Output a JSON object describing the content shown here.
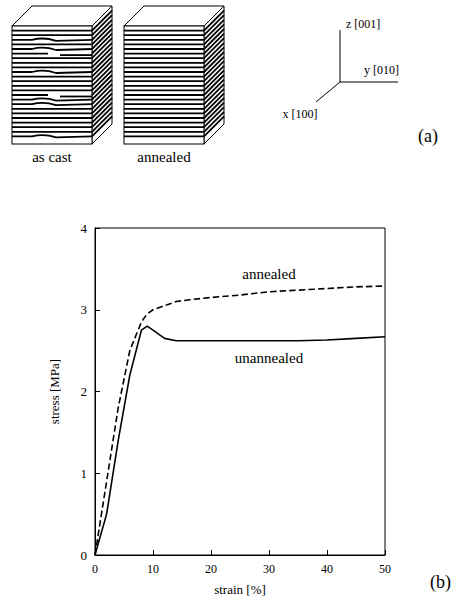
{
  "diagram": {
    "panel_label": "(a)",
    "blocks": [
      "as cast",
      "annealed"
    ],
    "axes": [
      {
        "name": "z",
        "label": "z [001]"
      },
      {
        "name": "y",
        "label": "y [010]"
      },
      {
        "name": "x",
        "label": "x [100]"
      }
    ]
  },
  "chart_data": {
    "type": "line",
    "panel_label": "(b)",
    "x_label": "strain [%]",
    "y_label": "stress [MPa]",
    "x": [
      0,
      2,
      4,
      6,
      8,
      9,
      10,
      12,
      14,
      16,
      20,
      25,
      30,
      35,
      40,
      45,
      50
    ],
    "series": [
      {
        "name": "annealed",
        "color": "#000000",
        "line_style": "dashed",
        "values": [
          0,
          0.9,
          1.8,
          2.5,
          2.85,
          2.95,
          3.0,
          3.05,
          3.1,
          3.12,
          3.15,
          3.18,
          3.22,
          3.24,
          3.26,
          3.28,
          3.29
        ]
      },
      {
        "name": "unannealed",
        "color": "#000000",
        "line_style": "solid",
        "values": [
          0,
          0.5,
          1.4,
          2.2,
          2.75,
          2.8,
          2.75,
          2.65,
          2.62,
          2.62,
          2.62,
          2.62,
          2.62,
          2.62,
          2.63,
          2.65,
          2.67
        ]
      }
    ],
    "xlim": [
      0,
      50
    ],
    "xticks": [
      0,
      10,
      20,
      30,
      40,
      50
    ],
    "ylim": [
      0,
      4
    ],
    "yticks": [
      0,
      1,
      2,
      3,
      4
    ],
    "grid": false
  }
}
